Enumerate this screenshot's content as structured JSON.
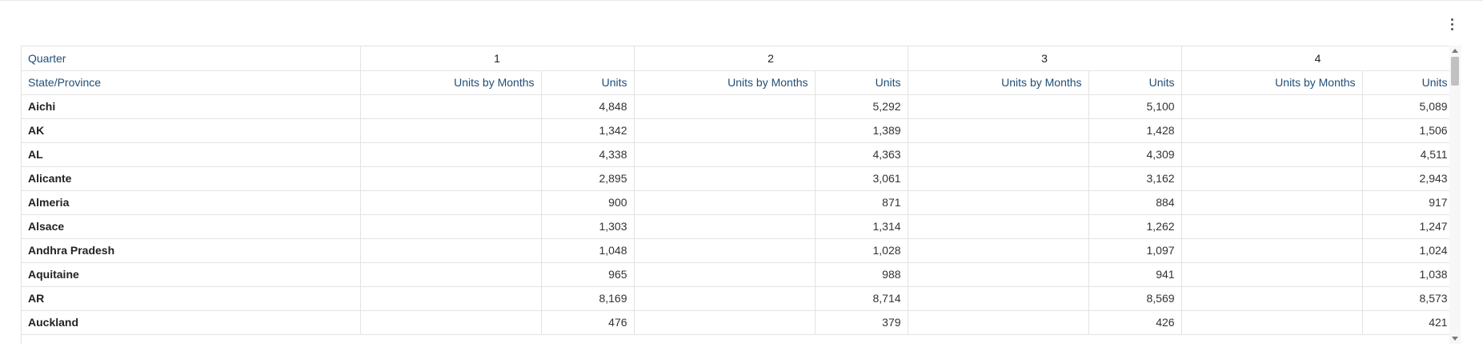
{
  "menu": {
    "icon": "more-vertical-icon"
  },
  "table": {
    "row_header_label": "Quarter",
    "column_header_label": "State/Province",
    "quarters": [
      "1",
      "2",
      "3",
      "4"
    ],
    "sub_headers": [
      "Units by Months",
      "Units"
    ],
    "rows": [
      {
        "name": "Aichi",
        "units": [
          "4,848",
          "5,292",
          "5,100",
          "5,089"
        ]
      },
      {
        "name": "AK",
        "units": [
          "1,342",
          "1,389",
          "1,428",
          "1,506"
        ]
      },
      {
        "name": "AL",
        "units": [
          "4,338",
          "4,363",
          "4,309",
          "4,511"
        ]
      },
      {
        "name": "Alicante",
        "units": [
          "2,895",
          "3,061",
          "3,162",
          "2,943"
        ]
      },
      {
        "name": "Almeria",
        "units": [
          "900",
          "871",
          "884",
          "917"
        ]
      },
      {
        "name": "Alsace",
        "units": [
          "1,303",
          "1,314",
          "1,262",
          "1,247"
        ]
      },
      {
        "name": "Andhra Pradesh",
        "units": [
          "1,048",
          "1,028",
          "1,097",
          "1,024"
        ]
      },
      {
        "name": "Aquitaine",
        "units": [
          "965",
          "988",
          "941",
          "1,038"
        ]
      },
      {
        "name": "AR",
        "units": [
          "8,169",
          "8,714",
          "8,569",
          "8,573"
        ]
      },
      {
        "name": "Auckland",
        "units": [
          "476",
          "379",
          "426",
          "421"
        ]
      }
    ]
  }
}
